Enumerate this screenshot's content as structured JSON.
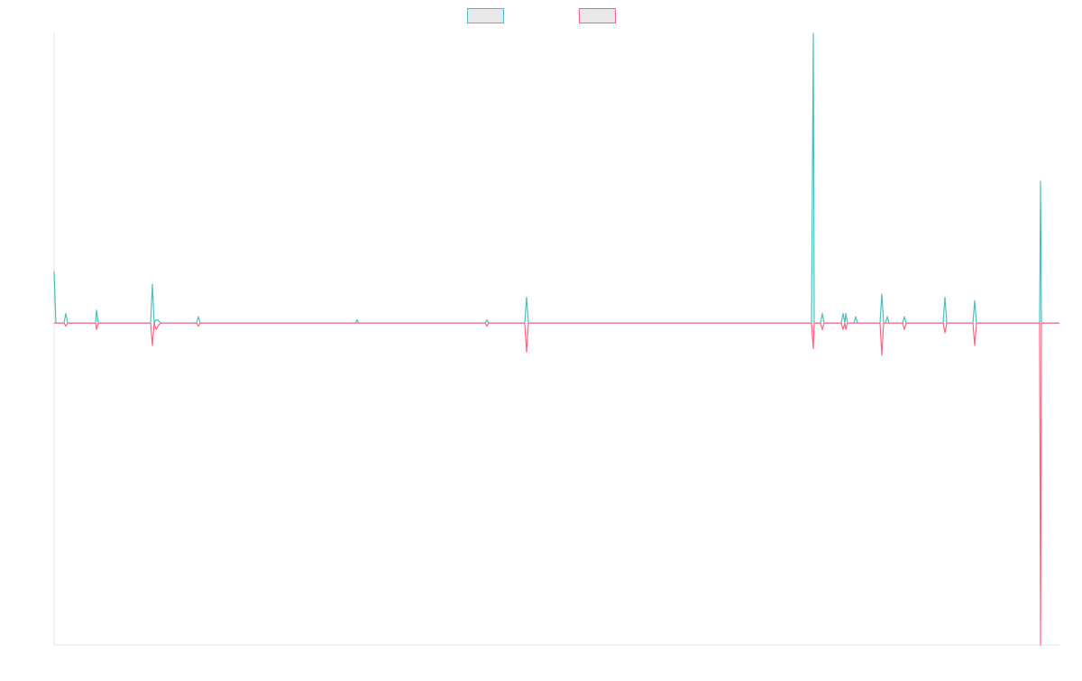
{
  "chart_data": {
    "type": "line",
    "title": "",
    "xlabel": "",
    "ylabel": "",
    "grid": false,
    "legend_position": "top-center",
    "legend_labels_visible": false,
    "ylim": [
      -100,
      90
    ],
    "xlim": [
      0,
      1115
    ],
    "series": [
      {
        "color": "#4bc0c0",
        "legend_fill": "#e8e8e8",
        "points": [
          [
            0,
            16
          ],
          [
            2,
            0
          ],
          [
            11,
            0
          ],
          [
            13,
            3
          ],
          [
            15,
            0
          ],
          [
            46,
            0
          ],
          [
            47,
            4
          ],
          [
            49,
            0
          ],
          [
            57,
            0
          ],
          [
            59,
            0
          ],
          [
            68,
            0
          ],
          [
            70,
            0
          ],
          [
            76,
            0
          ],
          [
            78,
            0
          ],
          [
            86,
            0
          ],
          [
            88,
            0
          ],
          [
            107,
            0
          ],
          [
            109,
            12
          ],
          [
            111,
            0
          ],
          [
            113,
            1
          ],
          [
            115,
            1
          ],
          [
            118,
            0
          ],
          [
            158,
            0
          ],
          [
            160,
            2
          ],
          [
            162,
            0
          ],
          [
            300,
            0
          ],
          [
            302,
            0
          ],
          [
            317,
            0
          ],
          [
            319,
            0
          ],
          [
            334,
            0
          ],
          [
            336,
            1
          ],
          [
            338,
            0
          ],
          [
            372,
            0
          ],
          [
            374,
            0
          ],
          [
            478,
            0
          ],
          [
            480,
            1
          ],
          [
            482,
            0
          ],
          [
            522,
            0
          ],
          [
            524,
            8
          ],
          [
            526,
            0
          ],
          [
            840,
            0
          ],
          [
            842,
            90
          ],
          [
            843,
            0
          ],
          [
            850,
            0
          ],
          [
            852,
            3
          ],
          [
            854,
            0
          ],
          [
            873,
            0
          ],
          [
            875,
            3
          ],
          [
            877,
            0
          ],
          [
            878,
            3
          ],
          [
            880,
            0
          ],
          [
            887,
            0
          ],
          [
            889,
            2
          ],
          [
            891,
            0
          ],
          [
            916,
            0
          ],
          [
            918,
            9
          ],
          [
            920,
            0
          ],
          [
            922,
            0
          ],
          [
            924,
            2
          ],
          [
            926,
            0
          ],
          [
            941,
            0
          ],
          [
            943,
            2
          ],
          [
            945,
            0
          ],
          [
            986,
            0
          ],
          [
            988,
            8
          ],
          [
            990,
            0
          ],
          [
            1019,
            0
          ],
          [
            1021,
            7
          ],
          [
            1023,
            0
          ],
          [
            1037,
            0
          ],
          [
            1039,
            0
          ],
          [
            1093,
            0
          ],
          [
            1094,
            44
          ],
          [
            1095,
            0
          ],
          [
            1115,
            0
          ]
        ]
      },
      {
        "color": "#ff6384",
        "legend_fill": "#e8e8e8",
        "points": [
          [
            0,
            0
          ],
          [
            11,
            0
          ],
          [
            13,
            -1
          ],
          [
            15,
            0
          ],
          [
            46,
            0
          ],
          [
            47,
            -2
          ],
          [
            49,
            0
          ],
          [
            57,
            0
          ],
          [
            59,
            0
          ],
          [
            68,
            0
          ],
          [
            70,
            0
          ],
          [
            76,
            0
          ],
          [
            78,
            0
          ],
          [
            86,
            0
          ],
          [
            88,
            0
          ],
          [
            107,
            0
          ],
          [
            109,
            -7
          ],
          [
            111,
            0
          ],
          [
            113,
            -2
          ],
          [
            115,
            -1
          ],
          [
            118,
            0
          ],
          [
            158,
            0
          ],
          [
            160,
            -1
          ],
          [
            162,
            0
          ],
          [
            300,
            0
          ],
          [
            302,
            0
          ],
          [
            317,
            0
          ],
          [
            319,
            0
          ],
          [
            334,
            0
          ],
          [
            336,
            0
          ],
          [
            338,
            0
          ],
          [
            372,
            0
          ],
          [
            374,
            0
          ],
          [
            478,
            0
          ],
          [
            480,
            -1
          ],
          [
            482,
            0
          ],
          [
            522,
            0
          ],
          [
            524,
            -9
          ],
          [
            526,
            0
          ],
          [
            840,
            0
          ],
          [
            842,
            -8
          ],
          [
            843,
            0
          ],
          [
            850,
            0
          ],
          [
            852,
            -2
          ],
          [
            854,
            0
          ],
          [
            873,
            0
          ],
          [
            875,
            -2
          ],
          [
            877,
            0
          ],
          [
            878,
            -2
          ],
          [
            880,
            0
          ],
          [
            887,
            0
          ],
          [
            889,
            0
          ],
          [
            891,
            0
          ],
          [
            916,
            0
          ],
          [
            918,
            -10
          ],
          [
            920,
            0
          ],
          [
            922,
            0
          ],
          [
            924,
            0
          ],
          [
            926,
            0
          ],
          [
            941,
            0
          ],
          [
            943,
            -2
          ],
          [
            945,
            0
          ],
          [
            986,
            0
          ],
          [
            988,
            -3
          ],
          [
            990,
            0
          ],
          [
            1019,
            0
          ],
          [
            1021,
            -7
          ],
          [
            1023,
            0
          ],
          [
            1037,
            0
          ],
          [
            1039,
            0
          ],
          [
            1093,
            0
          ],
          [
            1094,
            -100
          ],
          [
            1095,
            0
          ],
          [
            1115,
            0
          ]
        ]
      }
    ]
  }
}
